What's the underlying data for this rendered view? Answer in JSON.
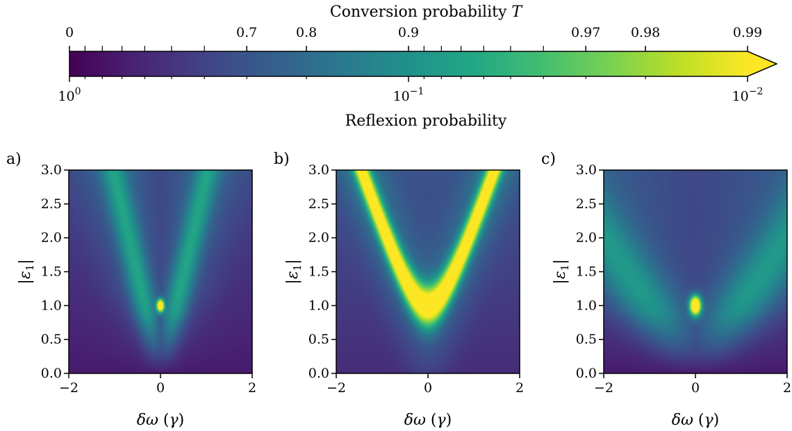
{
  "colorbar": {
    "top_label": "Conversion probability T",
    "top_label_main": "Conversion probability ",
    "top_label_var": "T",
    "top_ticks": [
      "0",
      "0.7",
      "0.8",
      "0.9",
      "0.97",
      "0.98",
      "0.99"
    ],
    "top_tick_values": [
      0,
      0.7,
      0.8,
      0.9,
      0.97,
      0.98,
      0.99
    ],
    "bottom_label": "Reflexion probability",
    "bottom_ticks": [
      {
        "base": "10",
        "exp": "0",
        "value": 1
      },
      {
        "base": "10",
        "exp": "−1",
        "value": 0.1
      },
      {
        "base": "10",
        "exp": "−2",
        "value": 0.01
      }
    ],
    "scale": "log",
    "range": [
      1,
      0.01
    ],
    "extend": "max",
    "colormap": "viridis"
  },
  "chart_data": [
    {
      "type": "heatmap",
      "panel": "a)",
      "xlabel": "δω (γ)",
      "xlabel_main": "δω (",
      "xlabel_var": "γ",
      "xlabel_close": ")",
      "ylabel": "|ε1|",
      "xlim": [
        -2,
        2
      ],
      "ylim": [
        0,
        3
      ],
      "xticks": [
        "−2",
        "0",
        "2"
      ],
      "xtick_values": [
        -2,
        0,
        2
      ],
      "yticks": [
        "0.0",
        "0.5",
        "1.0",
        "1.5",
        "2.0",
        "2.5",
        "3.0"
      ],
      "ytick_values": [
        0,
        0.5,
        1,
        1.5,
        2,
        2.5,
        3
      ],
      "z": "Reflexion probability (log scale)",
      "features": {
        "branch_slope": 2.9,
        "branch_width": 0.18,
        "branch_peak_reflexion": 0.12,
        "hotspot_center": [
          0,
          1.0
        ],
        "hotspot_reflexion": 0.01
      }
    },
    {
      "type": "heatmap",
      "panel": "b)",
      "xlabel": "δω (γ)",
      "xlabel_main": "δω (",
      "xlabel_var": "γ",
      "xlabel_close": ")",
      "ylabel": "|ε1|",
      "xlim": [
        -2,
        2
      ],
      "ylim": [
        0,
        3
      ],
      "xticks": [
        "−2",
        "0",
        "2"
      ],
      "xtick_values": [
        -2,
        0,
        2
      ],
      "yticks": [
        "0.0",
        "0.5",
        "1.0",
        "1.5",
        "2.0",
        "2.5",
        "3.0"
      ],
      "ytick_values": [
        0,
        0.5,
        1,
        1.5,
        2,
        2.5,
        3
      ],
      "z": "Reflexion probability (log scale)",
      "features": {
        "branch_shape": "hyperbola",
        "vertex": [
          0,
          1.0
        ],
        "asymptotic_slope": 1.95,
        "branch_width": 0.12,
        "branch_peak_reflexion": 0.01
      }
    },
    {
      "type": "heatmap",
      "panel": "c)",
      "xlabel": "δω (γ)",
      "xlabel_main": "δω (",
      "xlabel_var": "γ",
      "xlabel_close": ")",
      "ylabel": "|ε1|",
      "xlim": [
        -2,
        2
      ],
      "ylim": [
        0,
        3
      ],
      "xticks": [
        "−2",
        "0",
        "2"
      ],
      "xtick_values": [
        -2,
        0,
        2
      ],
      "yticks": [
        "0.0",
        "0.5",
        "1.0",
        "1.5",
        "2.0",
        "2.5",
        "3.0"
      ],
      "ytick_values": [
        0,
        0.5,
        1,
        1.5,
        2,
        2.5,
        3
      ],
      "z": "Reflexion probability (log scale)",
      "features": {
        "branch_slope": 1.0,
        "branch_width": 0.35,
        "branch_peak_reflexion": 0.15,
        "hotspot_center": [
          0,
          1.0
        ],
        "hotspot_reflexion": 0.01
      }
    }
  ]
}
